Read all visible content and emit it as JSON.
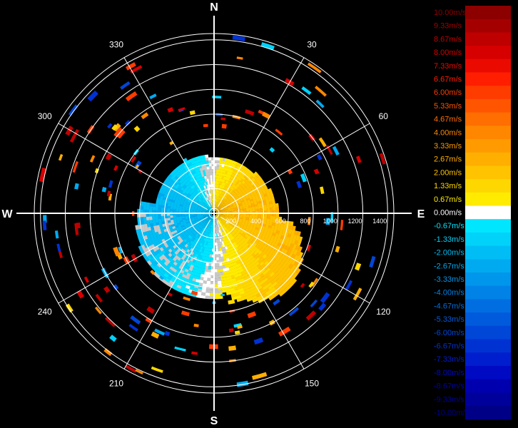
{
  "chart_data": {
    "type": "polar-ppi",
    "compass": {
      "north": "N",
      "east": "E",
      "south": "S",
      "west": "W"
    },
    "azimuth_labels": [
      {
        "deg": 30,
        "text": "30"
      },
      {
        "deg": 60,
        "text": "60"
      },
      {
        "deg": 120,
        "text": "120"
      },
      {
        "deg": 150,
        "text": "150"
      },
      {
        "deg": 210,
        "text": "210"
      },
      {
        "deg": 240,
        "text": "240"
      },
      {
        "deg": 300,
        "text": "300"
      },
      {
        "deg": 330,
        "text": "330"
      }
    ],
    "range_rings": [
      200,
      400,
      600,
      800,
      1000,
      1200,
      1400
    ],
    "range_labels": [
      "200",
      "400",
      "600",
      "800",
      "1000",
      "1200",
      "1400"
    ],
    "max_range": 1450,
    "velocity_scale": [
      {
        "value": 10.0,
        "label": "10.00m/s",
        "color": "#8c0000"
      },
      {
        "value": 9.33,
        "label": "9.33m/s",
        "color": "#a50000"
      },
      {
        "value": 8.67,
        "label": "8.67m/s",
        "color": "#be0000"
      },
      {
        "value": 8.0,
        "label": "8.00m/s",
        "color": "#d70000"
      },
      {
        "value": 7.33,
        "label": "7.33m/s",
        "color": "#eb0a00"
      },
      {
        "value": 6.67,
        "label": "6.67m/s",
        "color": "#ff1e00"
      },
      {
        "value": 6.0,
        "label": "6.00m/s",
        "color": "#ff3c00"
      },
      {
        "value": 5.33,
        "label": "5.33m/s",
        "color": "#ff5500"
      },
      {
        "value": 4.67,
        "label": "4.67m/s",
        "color": "#ff6e00"
      },
      {
        "value": 4.0,
        "label": "4.00m/s",
        "color": "#ff8700"
      },
      {
        "value": 3.33,
        "label": "3.33m/s",
        "color": "#ff9b00"
      },
      {
        "value": 2.67,
        "label": "2.67m/s",
        "color": "#ffaf00"
      },
      {
        "value": 2.0,
        "label": "2.00m/s",
        "color": "#ffc300"
      },
      {
        "value": 1.33,
        "label": "1.33m/s",
        "color": "#ffd700"
      },
      {
        "value": 0.67,
        "label": "0.67m/s",
        "color": "#ffeb00"
      },
      {
        "value": 0.0,
        "label": "0.00m/s",
        "color": "#ffffff"
      },
      {
        "value": -0.67,
        "label": "-0.67m/s",
        "color": "#00e6ff"
      },
      {
        "value": -1.33,
        "label": "-1.33m/s",
        "color": "#00d2fa"
      },
      {
        "value": -2.0,
        "label": "-2.00m/s",
        "color": "#00bef5"
      },
      {
        "value": -2.67,
        "label": "-2.67m/s",
        "color": "#00aaf0"
      },
      {
        "value": -3.33,
        "label": "-3.33m/s",
        "color": "#0096eb"
      },
      {
        "value": -4.0,
        "label": "-4.00m/s",
        "color": "#0082e6"
      },
      {
        "value": -4.67,
        "label": "-4.67m/s",
        "color": "#006ee1"
      },
      {
        "value": -5.33,
        "label": "-5.33m/s",
        "color": "#005adc"
      },
      {
        "value": -6.0,
        "label": "-6.00m/s",
        "color": "#0046d7"
      },
      {
        "value": -6.67,
        "label": "-6.67m/s",
        "color": "#0032d2"
      },
      {
        "value": -7.33,
        "label": "-7.33m/s",
        "color": "#001ecd"
      },
      {
        "value": -8.0,
        "label": "-8.00m/s",
        "color": "#000ac3"
      },
      {
        "value": -8.67,
        "label": "-8.67m/s",
        "color": "#0000af"
      },
      {
        "value": -9.33,
        "label": "-9.33m/s",
        "color": "#00009b"
      },
      {
        "value": -10.0,
        "label": "-10.00m/s",
        "color": "#000087"
      }
    ],
    "ring_color": "#ffffff",
    "background": "#000000",
    "grey_color": "#c8c8c8"
  }
}
